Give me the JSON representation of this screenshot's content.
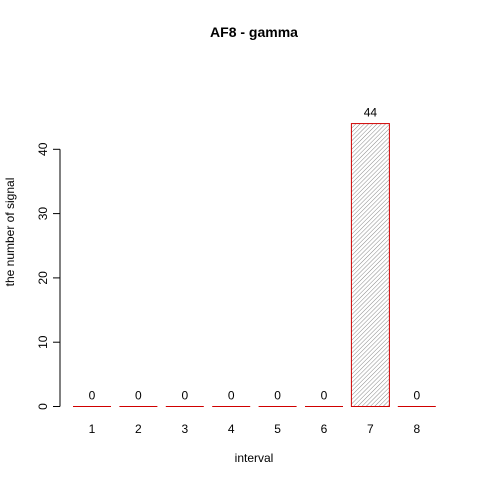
{
  "chart_data": {
    "type": "bar",
    "title": "AF8  -  gamma",
    "xlabel": "interval",
    "ylabel": "the number of signal",
    "categories": [
      "1",
      "2",
      "3",
      "4",
      "5",
      "6",
      "7",
      "8"
    ],
    "values": [
      0,
      0,
      0,
      0,
      0,
      0,
      44,
      0
    ],
    "value_labels": [
      "0",
      "0",
      "0",
      "0",
      "0",
      "0",
      "44",
      "0"
    ],
    "ylim": [
      0,
      44
    ],
    "yticks": [
      0,
      10,
      20,
      30,
      40
    ],
    "ytick_labels": [
      "0",
      "10",
      "20",
      "30",
      "40"
    ],
    "bar_border_color": "#d00000",
    "bar_fill": "hatched-gray",
    "grid": false,
    "legend": "none"
  }
}
